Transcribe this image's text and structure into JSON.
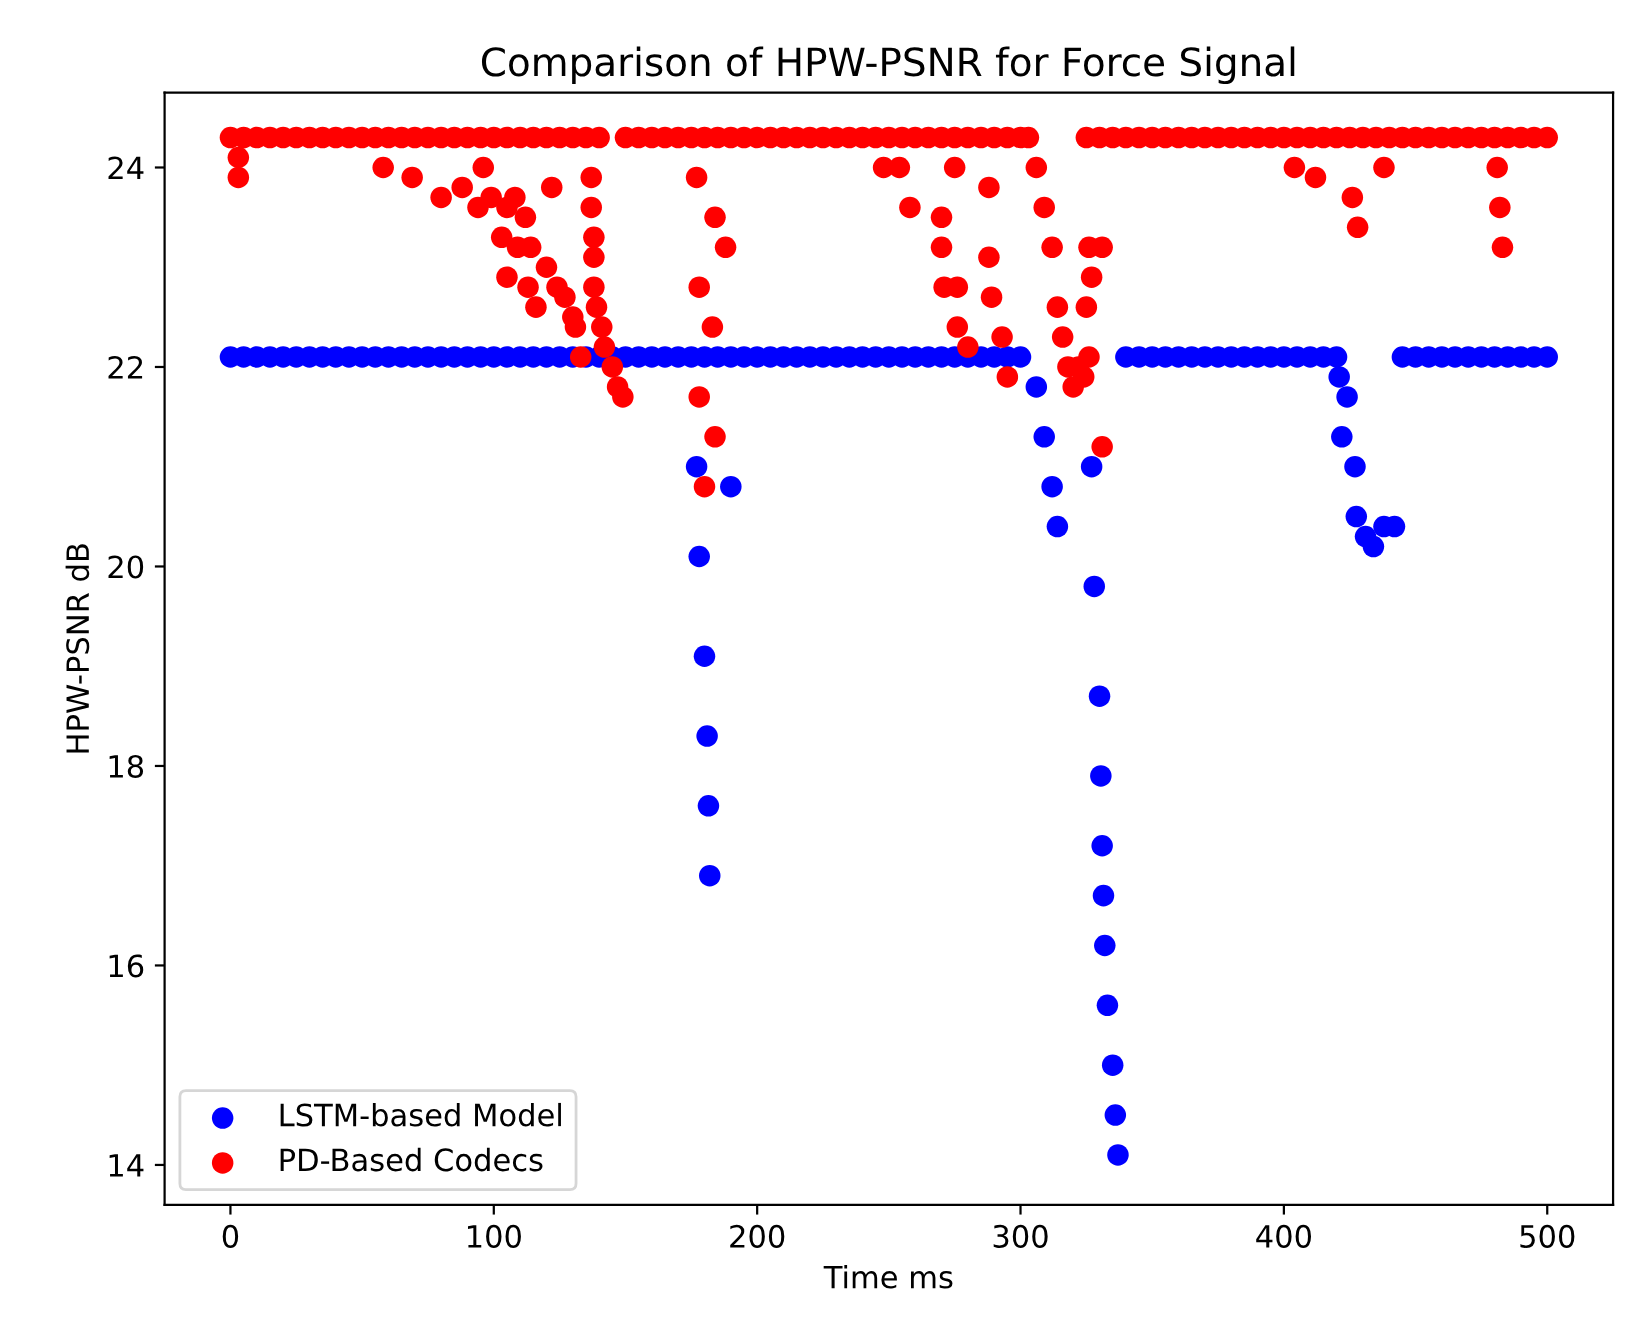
{
  "chart_data": {
    "type": "scatter",
    "title": "Comparison of HPW-PSNR for Force Signal",
    "xlabel": "Time ms",
    "ylabel": "HPW-PSNR dB",
    "xlim": [
      -25,
      525
    ],
    "ylim": [
      13.6,
      24.75
    ],
    "xticks": [
      0,
      100,
      200,
      300,
      400,
      500
    ],
    "yticks": [
      14,
      16,
      18,
      20,
      22,
      24
    ],
    "marker": "circle",
    "grid": false,
    "legend": "bottom left",
    "series": [
      {
        "name": "LSTM-based Model",
        "color": "#0000ff",
        "x": [
          0,
          5,
          10,
          15,
          20,
          25,
          30,
          35,
          40,
          45,
          50,
          55,
          60,
          65,
          70,
          75,
          80,
          85,
          90,
          95,
          100,
          105,
          110,
          115,
          120,
          125,
          130,
          135,
          140,
          145,
          150,
          155,
          160,
          165,
          170,
          175,
          180,
          185,
          190,
          195,
          200,
          205,
          210,
          215,
          220,
          225,
          230,
          235,
          240,
          245,
          250,
          255,
          260,
          265,
          270,
          275,
          280,
          285,
          290,
          295,
          300,
          177,
          178,
          180,
          181,
          181.5,
          182,
          190,
          306,
          309,
          312,
          314,
          327,
          328,
          330,
          330.5,
          331,
          331.5,
          332,
          333,
          335,
          336,
          337,
          340,
          345,
          350,
          355,
          360,
          365,
          370,
          375,
          380,
          385,
          390,
          395,
          400,
          405,
          410,
          415,
          420,
          421,
          424,
          422,
          427,
          427.5,
          431,
          434,
          438,
          442,
          445,
          450,
          455,
          460,
          465,
          470,
          475,
          480,
          485,
          490,
          495,
          500
        ],
        "values": [
          22.1,
          22.1,
          22.1,
          22.1,
          22.1,
          22.1,
          22.1,
          22.1,
          22.1,
          22.1,
          22.1,
          22.1,
          22.1,
          22.1,
          22.1,
          22.1,
          22.1,
          22.1,
          22.1,
          22.1,
          22.1,
          22.1,
          22.1,
          22.1,
          22.1,
          22.1,
          22.1,
          22.1,
          22.1,
          22.1,
          22.1,
          22.1,
          22.1,
          22.1,
          22.1,
          22.1,
          22.1,
          22.1,
          22.1,
          22.1,
          22.1,
          22.1,
          22.1,
          22.1,
          22.1,
          22.1,
          22.1,
          22.1,
          22.1,
          22.1,
          22.1,
          22.1,
          22.1,
          22.1,
          22.1,
          22.1,
          22.1,
          22.1,
          22.1,
          22.1,
          22.1,
          21.0,
          20.1,
          19.1,
          18.3,
          17.6,
          16.9,
          20.8,
          21.8,
          21.3,
          20.8,
          20.4,
          21.0,
          19.8,
          18.7,
          17.9,
          17.2,
          16.7,
          16.2,
          15.6,
          15.0,
          14.5,
          14.1,
          22.1,
          22.1,
          22.1,
          22.1,
          22.1,
          22.1,
          22.1,
          22.1,
          22.1,
          22.1,
          22.1,
          22.1,
          22.1,
          22.1,
          22.1,
          22.1,
          22.1,
          21.9,
          21.7,
          21.3,
          21.0,
          20.5,
          20.3,
          20.2,
          20.4,
          20.4,
          22.1,
          22.1,
          22.1,
          22.1,
          22.1,
          22.1,
          22.1,
          22.1,
          22.1,
          22.1,
          22.1,
          22.1
        ]
      },
      {
        "name": "PD-Based Codecs",
        "color": "#ff0000",
        "x": [
          0,
          5,
          10,
          15,
          20,
          25,
          30,
          35,
          40,
          45,
          50,
          55,
          60,
          65,
          70,
          75,
          80,
          85,
          90,
          95,
          100,
          105,
          110,
          115,
          120,
          125,
          130,
          135,
          140,
          150,
          155,
          160,
          165,
          170,
          175,
          180,
          185,
          190,
          195,
          200,
          205,
          210,
          215,
          220,
          225,
          230,
          235,
          240,
          245,
          250,
          255,
          260,
          265,
          270,
          275,
          280,
          285,
          290,
          295,
          300,
          325,
          330,
          335,
          340,
          345,
          350,
          355,
          360,
          365,
          370,
          375,
          380,
          385,
          390,
          395,
          400,
          405,
          410,
          415,
          420,
          425,
          430,
          435,
          440,
          445,
          450,
          455,
          460,
          465,
          470,
          475,
          480,
          485,
          490,
          495,
          500,
          3,
          3,
          58,
          69,
          80,
          88,
          96,
          99,
          94,
          105,
          108,
          103,
          112,
          122,
          109,
          105,
          114,
          120,
          124,
          113,
          116,
          127,
          130,
          131,
          133,
          137,
          137,
          138,
          138,
          138,
          139,
          141,
          142,
          145,
          147,
          149,
          177,
          184,
          188,
          178,
          183,
          178,
          184,
          180,
          258,
          270,
          270,
          271,
          276,
          276,
          280,
          288,
          288,
          289,
          293,
          295,
          248,
          254,
          275,
          303,
          306,
          309,
          312,
          314,
          316,
          318,
          320,
          322,
          324,
          326,
          331,
          326,
          331,
          327,
          325,
          404,
          412,
          426,
          428,
          438,
          481,
          482,
          483
        ],
        "values": [
          24.3,
          24.3,
          24.3,
          24.3,
          24.3,
          24.3,
          24.3,
          24.3,
          24.3,
          24.3,
          24.3,
          24.3,
          24.3,
          24.3,
          24.3,
          24.3,
          24.3,
          24.3,
          24.3,
          24.3,
          24.3,
          24.3,
          24.3,
          24.3,
          24.3,
          24.3,
          24.3,
          24.3,
          24.3,
          24.3,
          24.3,
          24.3,
          24.3,
          24.3,
          24.3,
          24.3,
          24.3,
          24.3,
          24.3,
          24.3,
          24.3,
          24.3,
          24.3,
          24.3,
          24.3,
          24.3,
          24.3,
          24.3,
          24.3,
          24.3,
          24.3,
          24.3,
          24.3,
          24.3,
          24.3,
          24.3,
          24.3,
          24.3,
          24.3,
          24.3,
          24.3,
          24.3,
          24.3,
          24.3,
          24.3,
          24.3,
          24.3,
          24.3,
          24.3,
          24.3,
          24.3,
          24.3,
          24.3,
          24.3,
          24.3,
          24.3,
          24.3,
          24.3,
          24.3,
          24.3,
          24.3,
          24.3,
          24.3,
          24.3,
          24.3,
          24.3,
          24.3,
          24.3,
          24.3,
          24.3,
          24.3,
          24.3,
          24.3,
          24.3,
          24.3,
          24.3,
          23.9,
          24.1,
          24.0,
          23.9,
          23.7,
          23.8,
          24.0,
          23.7,
          23.6,
          23.6,
          23.7,
          23.3,
          23.5,
          23.8,
          23.2,
          22.9,
          23.2,
          23.0,
          22.8,
          22.8,
          22.6,
          22.7,
          22.5,
          22.4,
          22.1,
          23.9,
          23.6,
          23.3,
          23.1,
          22.8,
          22.6,
          22.4,
          22.2,
          22.0,
          21.8,
          21.7,
          23.9,
          23.5,
          23.2,
          22.8,
          22.4,
          21.7,
          21.3,
          20.8,
          23.6,
          23.5,
          23.2,
          22.8,
          22.8,
          22.4,
          22.2,
          23.8,
          23.1,
          22.7,
          22.3,
          21.9,
          24.0,
          24.0,
          24.0,
          24.3,
          24.0,
          23.6,
          23.2,
          22.6,
          22.3,
          22.0,
          21.8,
          22.0,
          21.9,
          22.1,
          21.2,
          23.2,
          23.2,
          22.9,
          22.6,
          24.0,
          23.9,
          23.7,
          23.4,
          24.0,
          24.0,
          23.6,
          23.2
        ]
      }
    ]
  }
}
